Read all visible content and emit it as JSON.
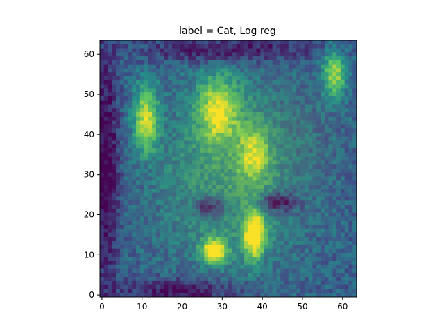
{
  "chart_data": {
    "type": "heatmap",
    "title": "label = Cat, Log reg",
    "xlabel": "",
    "ylabel": "",
    "xlim": [
      -0.5,
      63.5
    ],
    "ylim": [
      63.5,
      -0.5
    ],
    "grid": false,
    "colormap": "viridis",
    "overlay": "photograph of a cat face (64x64 px) with a semi-transparent viridis heatmap of logistic-regression weights",
    "image_size": [
      64,
      64
    ],
    "x_ticks": [
      {
        "value": 0,
        "label": "0"
      },
      {
        "value": 10,
        "label": "10"
      },
      {
        "value": 20,
        "label": "20"
      },
      {
        "value": 30,
        "label": "30"
      },
      {
        "value": 40,
        "label": "40"
      },
      {
        "value": 50,
        "label": "50"
      },
      {
        "value": 60,
        "label": "60"
      }
    ],
    "y_ticks": [
      {
        "value": 0,
        "label": "0"
      },
      {
        "value": 10,
        "label": "10"
      },
      {
        "value": 20,
        "label": "20"
      },
      {
        "value": 30,
        "label": "30"
      },
      {
        "value": 40,
        "label": "40"
      },
      {
        "value": 50,
        "label": "50"
      },
      {
        "value": 60,
        "label": "60"
      }
    ],
    "colors": {
      "background_dark": "#2b1f5e",
      "mid_olive": "#7a7a3a",
      "bright_yellow": "#f2ea2a",
      "lime": "#a8d84a",
      "teal": "#3c6e78"
    }
  }
}
